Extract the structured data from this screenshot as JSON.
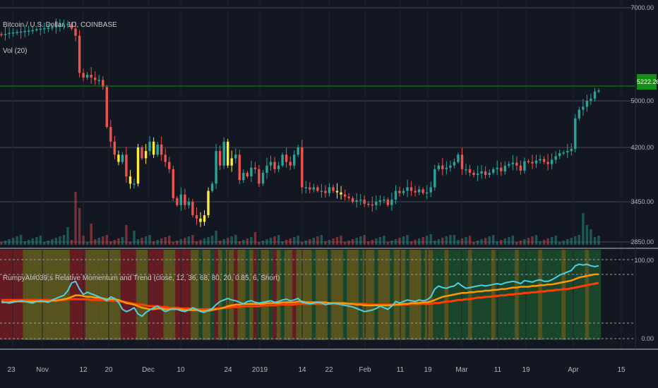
{
  "header": {
    "symbol": "Bitcoin / U.S. Dollar, 1D, COINBASE",
    "volume": "Vol (20)",
    "indicator": "RumpyAt#039;s Relative Momentum and Trend (close, 12, 36, 68, 80, 20, 0.85, 6, Short)"
  },
  "price_axis": {
    "labels": [
      "7000.00",
      "5000.00",
      "4200.00",
      "3450.00",
      "2850.00"
    ],
    "last_price": "5222.26"
  },
  "indicator_axis": {
    "labels": [
      "100.00",
      "0.00"
    ]
  },
  "time_axis": {
    "labels": [
      "23",
      "Nov",
      "12",
      "20",
      "Dec",
      "10",
      "24",
      "2019",
      "14",
      "22",
      "Feb",
      "11",
      "19",
      "Mar",
      "11",
      "19",
      "Apr",
      "15"
    ]
  },
  "colors": {
    "background": "#131722",
    "up": "#26a69a",
    "down": "#ef5350",
    "highlight": "#ffeb3b",
    "line_cyan": "#4dd0e1",
    "line_orange": "#ff9800",
    "line_red": "#ff3d00",
    "last_price_line": "#148e14",
    "zone_red": "#6d1d22",
    "zone_green": "#1b4a2c",
    "zone_yellow": "#5e5a1e"
  },
  "chart_data": [
    {
      "type": "candlestick",
      "title": "Bitcoin / U.S. Dollar, 1D, COINBASE",
      "y_labels": [
        7000,
        5000,
        4200,
        3450,
        2850
      ],
      "last_price": 5222.26,
      "close": [
        6420,
        6440,
        6460,
        6470,
        6480,
        6490,
        6500,
        6510,
        6520,
        6540,
        6550,
        6560,
        6570,
        6580,
        6600,
        6620,
        6640,
        6650,
        6550,
        6400,
        5600,
        5500,
        5560,
        5500,
        5450,
        5450,
        5300,
        4550,
        4300,
        4100,
        4000,
        4100,
        3800,
        3700,
        3700,
        4200,
        4050,
        4150,
        4300,
        4100,
        4250,
        4100,
        4000,
        3900,
        3500,
        3400,
        3550,
        3400,
        3450,
        3250,
        3200,
        3150,
        3250,
        3600,
        3700,
        4150,
        3950,
        4300,
        3950,
        4050,
        4100,
        3750,
        3850,
        3800,
        3920,
        3900,
        3700,
        3850,
        3950,
        4000,
        3900,
        3950,
        4100,
        4000,
        3950,
        4100,
        4200,
        3650,
        3650,
        3620,
        3650,
        3600,
        3600,
        3570,
        3650,
        3600,
        3580,
        3550,
        3520,
        3500,
        3450,
        3470,
        3480,
        3420,
        3410,
        3400,
        3450,
        3470,
        3480,
        3400,
        3480,
        3600,
        3570,
        3600,
        3650,
        3600,
        3580,
        3620,
        3570,
        3580,
        3650,
        3900,
        3950,
        3900,
        3920,
        3950,
        4000,
        4100,
        3900,
        3900,
        3850,
        3820,
        3840,
        3870,
        3820,
        3850,
        3900,
        3920,
        3870,
        3950,
        3970,
        3990,
        3950,
        3880,
        4010,
        4000,
        3980,
        4020,
        4040,
        4000,
        3970,
        4030,
        4080,
        4120,
        4130,
        4150,
        4180,
        4700,
        4850,
        4900,
        5000,
        5050,
        5200,
        5222
      ]
    },
    {
      "type": "line",
      "title": "RumpyAt#039;s Relative Momentum and Trend (close, 12, 36, 68, 80, 20, 0.85, 6, Short)",
      "y_labels": [
        100,
        0
      ],
      "series": [
        {
          "values": [
            46,
            45,
            44,
            45,
            46,
            47,
            46,
            45,
            44,
            46,
            47,
            46,
            45,
            48,
            50,
            52,
            54,
            60,
            70,
            72,
            62,
            55,
            58,
            56,
            54,
            52,
            50,
            47,
            52,
            50,
            45,
            36,
            33,
            35,
            38,
            30,
            27,
            32,
            35,
            38,
            40,
            36,
            33,
            35,
            37,
            36,
            34,
            33,
            35,
            38,
            36,
            33,
            32,
            35,
            37,
            42,
            46,
            48,
            50,
            48,
            47,
            45,
            43,
            46,
            47,
            45,
            44,
            45,
            46,
            47,
            45,
            46,
            48,
            49,
            47,
            48,
            50,
            45,
            44,
            43,
            44,
            45,
            44,
            42,
            43,
            44,
            43,
            42,
            41,
            40,
            39,
            37,
            35,
            33,
            34,
            35,
            37,
            40,
            38,
            36,
            40,
            46,
            44,
            46,
            48,
            47,
            46,
            48,
            47,
            48,
            52,
            62,
            66,
            64,
            63,
            65,
            66,
            70,
            66,
            63,
            64,
            65,
            66,
            67,
            66,
            67,
            68,
            69,
            68,
            70,
            71,
            72,
            71,
            69,
            73,
            72,
            71,
            73,
            74,
            72,
            72,
            74,
            77,
            80,
            82,
            84,
            86,
            92,
            94,
            93,
            94,
            92,
            91,
            92
          ]
        },
        {
          "values": [
            45,
            45,
            45,
            46,
            46,
            46,
            46,
            46,
            46,
            46,
            46,
            46,
            46,
            47,
            47,
            48,
            49,
            50,
            52,
            54,
            54,
            53,
            52,
            52,
            51,
            51,
            50,
            49,
            49,
            49,
            48,
            46,
            44,
            43,
            42,
            40,
            38,
            37,
            36,
            36,
            37,
            37,
            36,
            36,
            36,
            36,
            36,
            35,
            35,
            35,
            35,
            34,
            34,
            34,
            35,
            36,
            37,
            38,
            40,
            41,
            42,
            42,
            43,
            43,
            43,
            43,
            43,
            43,
            44,
            44,
            44,
            44,
            45,
            45,
            45,
            45,
            46,
            46,
            45,
            45,
            45,
            45,
            45,
            45,
            44,
            44,
            44,
            44,
            44,
            43,
            43,
            42,
            42,
            41,
            41,
            41,
            41,
            41,
            41,
            41,
            41,
            42,
            42,
            43,
            43,
            44,
            44,
            44,
            45,
            45,
            46,
            48,
            50,
            52,
            53,
            54,
            55,
            56,
            57,
            57,
            58,
            58,
            59,
            59,
            60,
            60,
            61,
            61,
            62,
            62,
            63,
            64,
            64,
            65,
            65,
            65,
            66,
            66,
            67,
            67,
            68,
            68,
            69,
            70,
            71,
            72,
            73,
            75,
            77,
            78,
            79,
            80,
            81,
            81
          ]
        },
        {
          "values": [
            48,
            48,
            48,
            48,
            48,
            48,
            48,
            48,
            48,
            48,
            48,
            48,
            48,
            48,
            48,
            48,
            48,
            49,
            49,
            49,
            49,
            49,
            49,
            48,
            48,
            48,
            48,
            47,
            47,
            47,
            46,
            46,
            45,
            44,
            43,
            42,
            42,
            41,
            40,
            40,
            40,
            39,
            39,
            38,
            38,
            38,
            37,
            37,
            37,
            36,
            36,
            36,
            36,
            36,
            36,
            37,
            37,
            38,
            38,
            39,
            39,
            39,
            40,
            40,
            40,
            40,
            40,
            41,
            41,
            41,
            41,
            42,
            42,
            42,
            42,
            42,
            43,
            43,
            43,
            43,
            43,
            43,
            43,
            43,
            43,
            43,
            43,
            43,
            43,
            43,
            43,
            43,
            43,
            43,
            42,
            42,
            42,
            42,
            42,
            42,
            42,
            42,
            42,
            42,
            42,
            43,
            43,
            43,
            43,
            43,
            43,
            44,
            44,
            45,
            46,
            46,
            47,
            48,
            48,
            49,
            49,
            50,
            51,
            51,
            52,
            52,
            53,
            53,
            54,
            54,
            55,
            55,
            56,
            56,
            57,
            57,
            58,
            58,
            59,
            59,
            60,
            60,
            61,
            61,
            62,
            62,
            63,
            64,
            65,
            66,
            67,
            68,
            69,
            70
          ]
        }
      ]
    }
  ]
}
